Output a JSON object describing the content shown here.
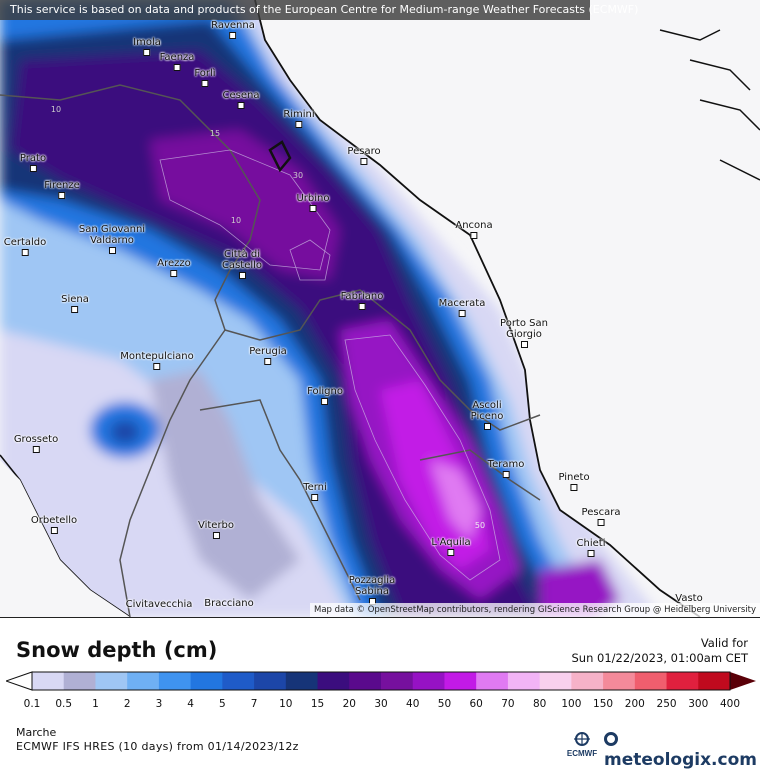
{
  "map": {
    "banner": "This service is based on data and products of the European Centre for Medium-range Weather Forecasts (ECMWF)",
    "attribution": "Map data © OpenStreetMap contributors, rendering GIScience Research Group @ Heidelberg University",
    "cities": [
      {
        "id": "ravenna",
        "name": "Ravenna"
      },
      {
        "id": "imola",
        "name": "Imola"
      },
      {
        "id": "faenza",
        "name": "Faenza"
      },
      {
        "id": "forli",
        "name": "Forlì"
      },
      {
        "id": "cesena",
        "name": "Cesena"
      },
      {
        "id": "rimini",
        "name": "Rimini"
      },
      {
        "id": "pesaro",
        "name": "Pesaro"
      },
      {
        "id": "prato",
        "name": "Prato"
      },
      {
        "id": "firenze",
        "name": "Firenze"
      },
      {
        "id": "urbino",
        "name": "Urbino"
      },
      {
        "id": "ancona",
        "name": "Ancona"
      },
      {
        "id": "certaldo",
        "name": "Certaldo"
      },
      {
        "id": "sangiovanni",
        "name": "San Giovanni Valdarno"
      },
      {
        "id": "arezzo",
        "name": "Arezzo"
      },
      {
        "id": "cittadicastello",
        "name": "Città di Castello"
      },
      {
        "id": "fabriano",
        "name": "Fabriano"
      },
      {
        "id": "macerata",
        "name": "Macerata"
      },
      {
        "id": "siena",
        "name": "Siena"
      },
      {
        "id": "portosangiorgio",
        "name": "Porto San Giorgio"
      },
      {
        "id": "montepulciano",
        "name": "Montepulciano"
      },
      {
        "id": "perugia",
        "name": "Perugia"
      },
      {
        "id": "foligno",
        "name": "Foligno"
      },
      {
        "id": "ascolipiceno",
        "name": "Ascoli Piceno"
      },
      {
        "id": "grosseto",
        "name": "Grosseto"
      },
      {
        "id": "teramo",
        "name": "Teramo"
      },
      {
        "id": "pineto",
        "name": "Pineto"
      },
      {
        "id": "terni",
        "name": "Terni"
      },
      {
        "id": "pescara",
        "name": "Pescara"
      },
      {
        "id": "orbetello",
        "name": "Orbetello"
      },
      {
        "id": "viterbo",
        "name": "Viterbo"
      },
      {
        "id": "laquila",
        "name": "L'Aquila"
      },
      {
        "id": "chieti",
        "name": "Chieti"
      },
      {
        "id": "pozzaglia",
        "name": "Pozzaglia Sabina"
      },
      {
        "id": "vasto",
        "name": "Vasto"
      },
      {
        "id": "civitavecchia",
        "name": "Civitavecchia"
      },
      {
        "id": "bracciano",
        "name": "Bracciano"
      }
    ],
    "contour_labels": [
      "10",
      "15",
      "30",
      "10",
      "50"
    ]
  },
  "legend": {
    "title": "Snow depth (cm)",
    "valid_label": "Valid for",
    "valid_time": "Sun 01/22/2023, 01:00am CET",
    "ticks": [
      "0.1",
      "0.5",
      "1",
      "2",
      "3",
      "4",
      "5",
      "7",
      "10",
      "15",
      "20",
      "30",
      "40",
      "50",
      "60",
      "70",
      "80",
      "100",
      "150",
      "200",
      "250",
      "300",
      "400"
    ],
    "colors": [
      "#d8d8f4",
      "#b0b0d4",
      "#9fc6f4",
      "#6fb0f4",
      "#3f93ef",
      "#2276e0",
      "#1f5bc8",
      "#1c46a8",
      "#163478",
      "#3b0d7e",
      "#5a0a8c",
      "#76109e",
      "#9612c4",
      "#c21ae6",
      "#e07af2",
      "#f2b4f6",
      "#f8d0ee",
      "#f6b2c8",
      "#f48a9a",
      "#f05e6e",
      "#e0203e",
      "#c00a1e",
      "#9e0414",
      "#7a0210",
      "#5a0008"
    ]
  },
  "footer": {
    "region": "Marche",
    "model": "ECMWF IFS HRES (10 days) from 01/14/2023/12z",
    "ecmwf_logo": "ECMWF",
    "brand": "meteologix.com"
  }
}
